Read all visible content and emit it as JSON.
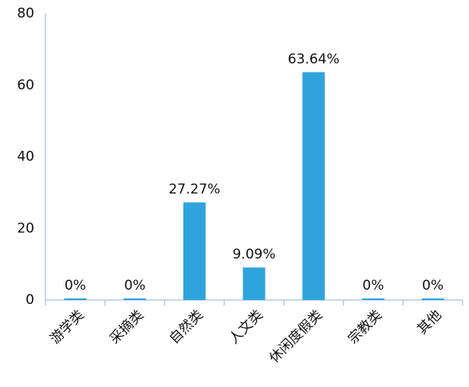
{
  "chart_data": {
    "type": "bar",
    "categories": [
      "游学类",
      "采摘类",
      "自然类",
      "人文类",
      "休闲度假类",
      "宗教类",
      "其他"
    ],
    "values": [
      0,
      0,
      27.27,
      9.09,
      63.64,
      0,
      0
    ],
    "value_labels": [
      "0%",
      "0%",
      "27.27%",
      "9.09%",
      "63.64%",
      "0%",
      "0%"
    ],
    "color": "#2fa4dc",
    "ylim": [
      0,
      80
    ],
    "yticks": [
      0,
      20,
      40,
      60,
      80
    ],
    "grid": false
  }
}
